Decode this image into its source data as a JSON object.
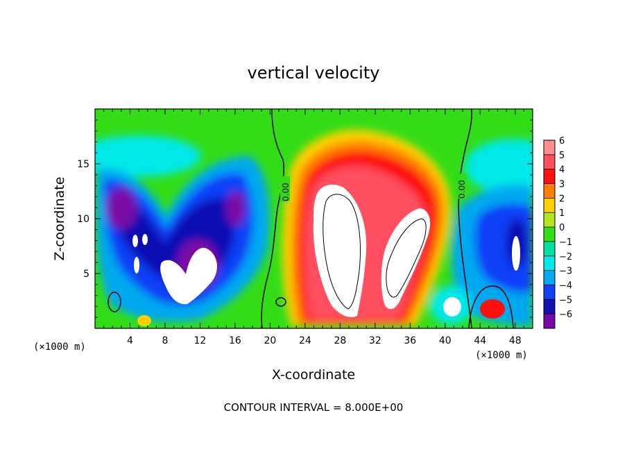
{
  "chart_data": {
    "type": "heatmap",
    "title": "vertical velocity",
    "xlabel": "X-coordinate",
    "ylabel": "Z-coordinate",
    "x_unit_label": "(×1000 m)",
    "x_unit_label_right": "(×1000 m)",
    "xlim": [
      0,
      50
    ],
    "ylim": [
      0,
      20
    ],
    "x_ticks": [
      4,
      8,
      12,
      16,
      20,
      24,
      28,
      32,
      36,
      40,
      44,
      48
    ],
    "y_ticks": [
      5,
      10,
      15
    ],
    "colorbar": {
      "levels": [
        6,
        5,
        4,
        3,
        2,
        1,
        0,
        -1,
        -2,
        -3,
        -4,
        -5,
        -6
      ],
      "labels": [
        "6",
        "5",
        "4",
        "3",
        "2",
        "1",
        "0",
        "−1",
        "−2",
        "−3",
        "−4",
        "−5",
        "−6"
      ],
      "colors": [
        "#ff9090",
        "#ff5060",
        "#ff1010",
        "#ff7f00",
        "#ffd000",
        "#b8e61e",
        "#32dd16",
        "#00e0a0",
        "#00e8e8",
        "#00a8f0",
        "#1040f8",
        "#1010b4",
        "#7a0aa6"
      ]
    },
    "contour_label": "0.00",
    "contour_labels": [
      "0.00",
      "0.00"
    ],
    "footnote": "CONTOUR INTERVAL = 8.000E+00"
  }
}
